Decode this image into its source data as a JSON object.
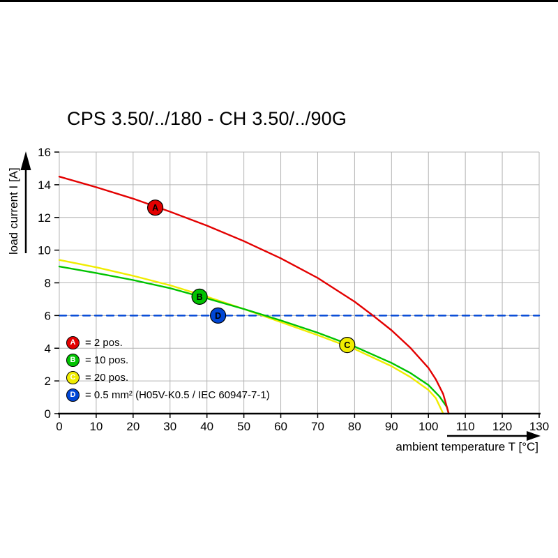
{
  "chart_data": {
    "type": "line",
    "title": "CPS 3.50/../180 - CH 3.50/../90G",
    "xlabel": "ambient temperature T [°C]",
    "ylabel": "load current I [A]",
    "xlim": [
      0,
      130
    ],
    "ylim": [
      0,
      16
    ],
    "xticks": [
      0,
      10,
      20,
      30,
      40,
      50,
      60,
      70,
      80,
      90,
      100,
      110,
      120,
      130
    ],
    "yticks": [
      0,
      2,
      4,
      6,
      8,
      10,
      12,
      14,
      16
    ],
    "grid": true,
    "legend_position": "bottom-left-inside",
    "marker_letter_color": "#ffffff",
    "colors": {
      "grid": "#b4b4b4",
      "axis": "#000000"
    },
    "series": [
      {
        "name": "A",
        "legend_label": "= 2 pos.",
        "color": "#e30000",
        "style": "solid",
        "points": [
          [
            0,
            14.5
          ],
          [
            10,
            13.85
          ],
          [
            20,
            13.15
          ],
          [
            30,
            12.35
          ],
          [
            40,
            11.5
          ],
          [
            50,
            10.55
          ],
          [
            60,
            9.5
          ],
          [
            70,
            8.3
          ],
          [
            80,
            6.85
          ],
          [
            85,
            6.0
          ],
          [
            90,
            5.1
          ],
          [
            95,
            4.05
          ],
          [
            100,
            2.8
          ],
          [
            102,
            2.1
          ],
          [
            104,
            1.2
          ],
          [
            105,
            0.4
          ],
          [
            105.5,
            0
          ]
        ],
        "marker": [
          26,
          12.6
        ]
      },
      {
        "name": "B",
        "legend_label": "= 10 pos.",
        "color": "#00c300",
        "style": "solid",
        "points": [
          [
            0,
            9.0
          ],
          [
            10,
            8.6
          ],
          [
            20,
            8.17
          ],
          [
            30,
            7.67
          ],
          [
            40,
            7.05
          ],
          [
            50,
            6.4
          ],
          [
            60,
            5.7
          ],
          [
            70,
            4.95
          ],
          [
            80,
            4.1
          ],
          [
            90,
            3.1
          ],
          [
            95,
            2.5
          ],
          [
            100,
            1.75
          ],
          [
            103,
            1.05
          ],
          [
            105,
            0.4
          ],
          [
            105.5,
            0
          ]
        ],
        "marker": [
          38,
          7.15
        ]
      },
      {
        "name": "C",
        "legend_label": "= 20 pos.",
        "color": "#f0ec00",
        "style": "solid",
        "points": [
          [
            0,
            9.4
          ],
          [
            10,
            8.95
          ],
          [
            20,
            8.43
          ],
          [
            30,
            7.85
          ],
          [
            40,
            7.15
          ],
          [
            50,
            6.4
          ],
          [
            60,
            5.6
          ],
          [
            70,
            4.8
          ],
          [
            80,
            3.95
          ],
          [
            90,
            2.9
          ],
          [
            95,
            2.25
          ],
          [
            100,
            1.45
          ],
          [
            102,
            0.95
          ],
          [
            104,
            0
          ]
        ],
        "marker": [
          78,
          4.2
        ]
      },
      {
        "name": "D",
        "legend_label": "= 0.5 mm² (H05V-K0.5 / IEC 60947-7-1)",
        "color": "#0046d5",
        "style": "dashed",
        "points": [
          [
            0,
            6
          ],
          [
            130,
            6
          ]
        ],
        "marker": [
          43,
          6
        ]
      }
    ]
  }
}
